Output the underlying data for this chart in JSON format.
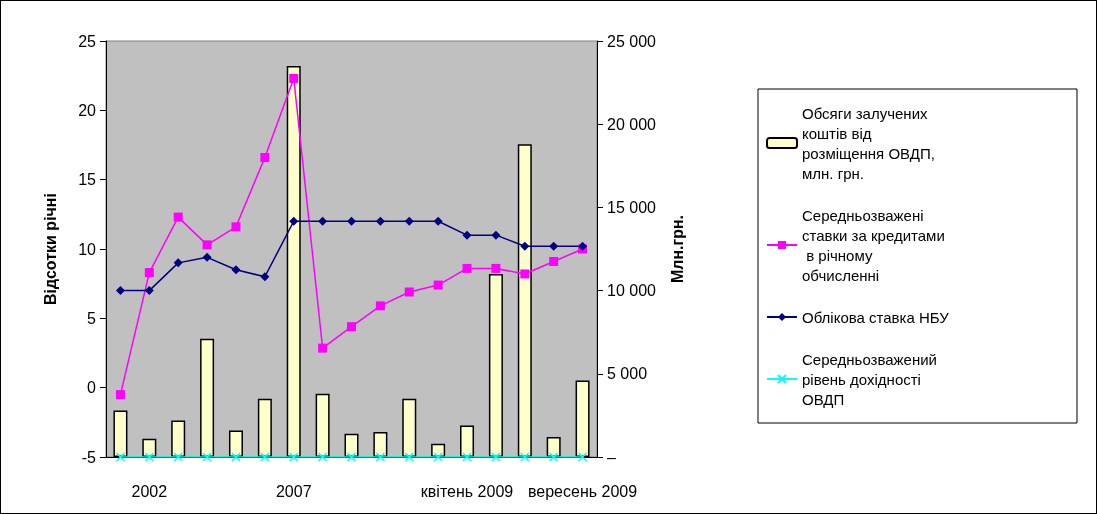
{
  "chart_data": {
    "type": "bar",
    "categories": [
      null,
      "2002",
      null,
      null,
      null,
      null,
      "2007",
      null,
      null,
      null,
      null,
      null,
      "квітень 2009",
      null,
      null,
      null,
      "вересень 2009"
    ],
    "ylabel": "Відсотки річні",
    "y2label": "Млн.грн.",
    "ylim": [
      -5,
      25
    ],
    "yticks": [
      -5,
      0,
      5,
      10,
      15,
      20,
      25
    ],
    "y2lim": [
      0,
      25000
    ],
    "y2ticks": [
      {
        "value": 0,
        "label": "–"
      },
      {
        "value": 5000,
        "label": "5 000"
      },
      {
        "value": 10000,
        "label": "10 000"
      },
      {
        "value": 15000,
        "label": "15 000"
      },
      {
        "value": 20000,
        "label": "20 000"
      },
      {
        "value": 25000,
        "label": "25 000"
      }
    ],
    "grid": false,
    "legend": "right",
    "series": [
      {
        "name": "Обсяги залучених коштів від розміщення ОВДП, млн. грн.",
        "axis": "y2",
        "color": "#ffffcc",
        "values": [
          2800,
          1100,
          2200,
          7100,
          1600,
          3500,
          23500,
          3800,
          1400,
          1500,
          3500,
          800,
          1900,
          11000,
          18800,
          1200,
          4600
        ]
      },
      {
        "name": "Середньозважені ставки за кредитами в річному обчисленні",
        "type": "line",
        "marker": "square",
        "color": "#ff00ff",
        "values": [
          -0.5,
          8.3,
          12.3,
          10.3,
          11.6,
          16.6,
          22.3,
          2.85,
          4.4,
          5.9,
          6.9,
          7.4,
          8.6,
          8.6,
          8.2,
          9.1,
          10.0
        ]
      },
      {
        "name": "Облікова ставка НБУ",
        "type": "line",
        "marker": "diamond",
        "color": "#000080",
        "values": [
          7.0,
          7.0,
          9.0,
          9.4,
          8.5,
          8.0,
          12.0,
          12.0,
          12.0,
          12.0,
          12.0,
          12.0,
          11.0,
          11.0,
          10.2,
          10.2,
          10.2
        ]
      },
      {
        "name": "Середньозважений рівень дохідності ОВДП",
        "type": "line",
        "axis": "y2",
        "marker": "cross",
        "color": "#00ffff",
        "values": [
          0,
          0,
          0,
          0,
          0,
          0,
          0,
          0,
          0,
          0,
          0,
          0,
          0,
          0,
          0,
          0,
          0
        ]
      }
    ]
  }
}
